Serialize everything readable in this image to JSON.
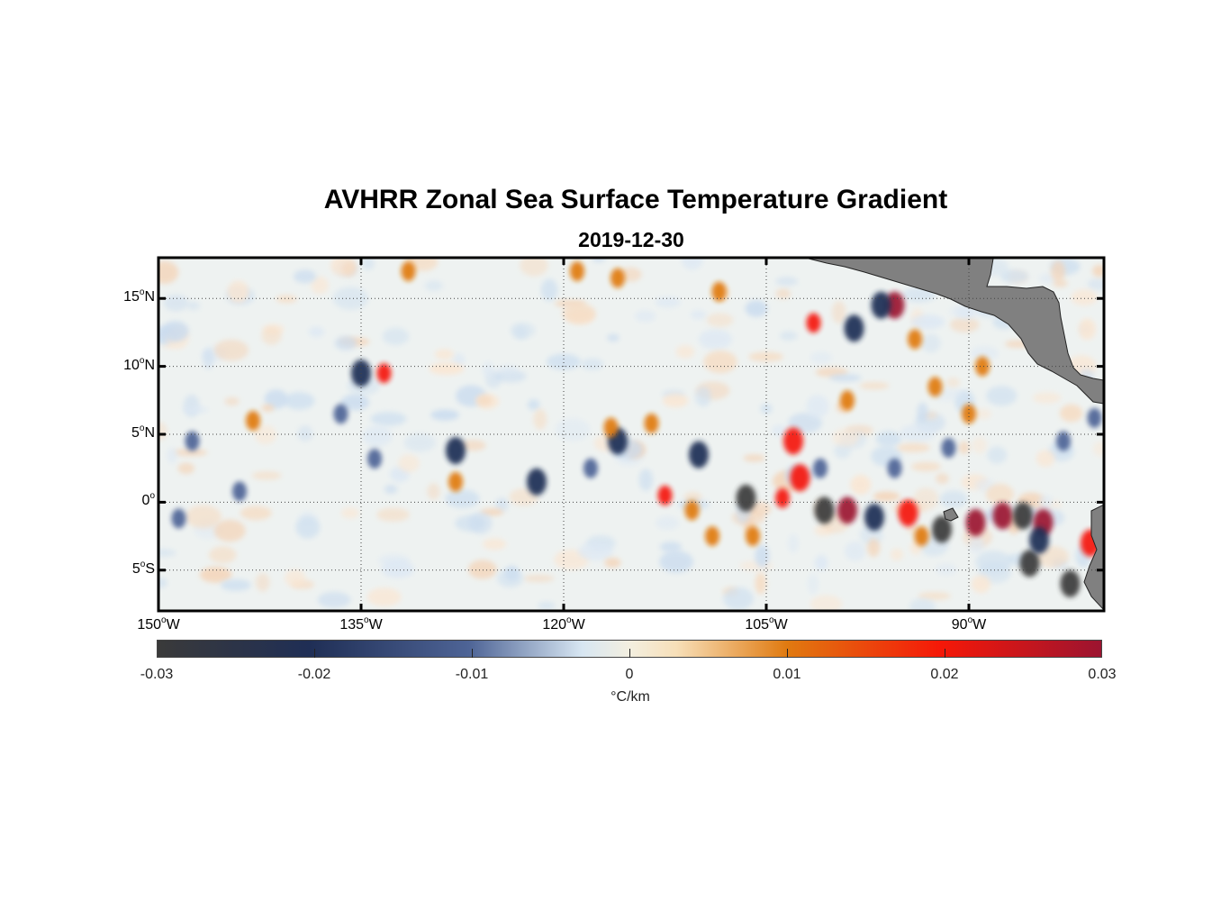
{
  "title": "AVHRR Zonal Sea Surface Temperature Gradient",
  "subtitle": "2019-12-30",
  "chart_data": {
    "type": "heatmap",
    "xlim": [
      -150,
      -80
    ],
    "ylim": [
      -8,
      18
    ],
    "lat_ticks": [
      {
        "value": 15,
        "deg": "15",
        "hemi": "N"
      },
      {
        "value": 10,
        "deg": "10",
        "hemi": "N"
      },
      {
        "value": 5,
        "deg": "5",
        "hemi": "N"
      },
      {
        "value": 0,
        "deg": "0",
        "hemi": ""
      },
      {
        "value": -5,
        "deg": "5",
        "hemi": "S"
      }
    ],
    "lon_ticks": [
      {
        "value": -150,
        "deg": "150",
        "hemi": "W"
      },
      {
        "value": -135,
        "deg": "135",
        "hemi": "W"
      },
      {
        "value": -120,
        "deg": "120",
        "hemi": "W"
      },
      {
        "value": -105,
        "deg": "105",
        "hemi": "W"
      },
      {
        "value": -90,
        "deg": "90",
        "hemi": "W"
      }
    ],
    "grid": true,
    "land_color": "#808080",
    "colorbar": {
      "range": [
        -0.03,
        0.03
      ],
      "ticks": [
        -0.03,
        -0.02,
        -0.01,
        0,
        0.01,
        0.02,
        0.03
      ],
      "tick_labels": [
        "-0.03",
        "-0.02",
        "-0.01",
        "0",
        "0.01",
        "0.02",
        "0.03"
      ],
      "unit": "°C/km",
      "colors": [
        "#3a3a3a",
        "#1f2e55",
        "#4e6496",
        "#d7e6f2",
        "#f3efe0",
        "#f7dfb8",
        "#e07a10",
        "#f51808",
        "#9c1430"
      ]
    },
    "features": [
      {
        "lon": -106.5,
        "lat": 0.3,
        "value": -0.03
      },
      {
        "lon": -103,
        "lat": 4.5,
        "value": 0.02
      },
      {
        "lon": -102.5,
        "lat": 1.8,
        "value": 0.02
      },
      {
        "lon": -100.7,
        "lat": -0.6,
        "value": -0.03
      },
      {
        "lon": -99,
        "lat": -0.6,
        "value": 0.03
      },
      {
        "lon": -97,
        "lat": -1.1,
        "value": -0.02
      },
      {
        "lon": -94.5,
        "lat": -0.8,
        "value": 0.02
      },
      {
        "lon": -92,
        "lat": -2,
        "value": -0.03
      },
      {
        "lon": -89.5,
        "lat": -1.5,
        "value": 0.03
      },
      {
        "lon": -87.5,
        "lat": -1,
        "value": 0.03
      },
      {
        "lon": -86,
        "lat": -1,
        "value": -0.03
      },
      {
        "lon": -84.5,
        "lat": -1.5,
        "value": 0.03
      },
      {
        "lon": -85.5,
        "lat": -4.5,
        "value": -0.03
      },
      {
        "lon": -82.5,
        "lat": -6,
        "value": -0.03
      },
      {
        "lon": -95.5,
        "lat": 14.5,
        "value": 0.03
      },
      {
        "lon": -98.5,
        "lat": 12.8,
        "value": -0.02
      },
      {
        "lon": -101.5,
        "lat": 13.2,
        "value": 0.015
      },
      {
        "lon": -96.5,
        "lat": 14.5,
        "value": -0.02
      },
      {
        "lon": -84.8,
        "lat": -2.8,
        "value": -0.025
      },
      {
        "lon": -81,
        "lat": -3,
        "value": 0.02
      },
      {
        "lon": -110,
        "lat": 3.5,
        "value": -0.02
      },
      {
        "lon": -116,
        "lat": 4.5,
        "value": -0.02
      },
      {
        "lon": -118,
        "lat": 2.5,
        "value": -0.015
      },
      {
        "lon": -122,
        "lat": 1.5,
        "value": -0.02
      },
      {
        "lon": -128,
        "lat": 3.8,
        "value": -0.02
      },
      {
        "lon": -134,
        "lat": 3.2,
        "value": -0.015
      },
      {
        "lon": -135,
        "lat": 9.5,
        "value": -0.02
      },
      {
        "lon": -133.3,
        "lat": 9.5,
        "value": 0.015
      },
      {
        "lon": -136.5,
        "lat": 6.5,
        "value": -0.015
      },
      {
        "lon": -144,
        "lat": 0.8,
        "value": -0.015
      },
      {
        "lon": -148.5,
        "lat": -1.2,
        "value": -0.015
      },
      {
        "lon": -147.5,
        "lat": 4.5,
        "value": -0.012
      },
      {
        "lon": -116.5,
        "lat": 5.5,
        "value": 0.012
      },
      {
        "lon": -113.5,
        "lat": 5.8,
        "value": 0.012
      },
      {
        "lon": -112.5,
        "lat": 0.5,
        "value": 0.015
      },
      {
        "lon": -110.5,
        "lat": -0.6,
        "value": 0.012
      },
      {
        "lon": -109,
        "lat": -2.5,
        "value": 0.012
      },
      {
        "lon": -106,
        "lat": -2.5,
        "value": 0.012
      },
      {
        "lon": -131.5,
        "lat": 17,
        "value": 0.012
      },
      {
        "lon": -119,
        "lat": 17,
        "value": 0.012
      },
      {
        "lon": -116,
        "lat": 16.5,
        "value": 0.012
      },
      {
        "lon": -108.5,
        "lat": 15.5,
        "value": 0.012
      },
      {
        "lon": -93.5,
        "lat": -2.5,
        "value": 0.012
      },
      {
        "lon": -99,
        "lat": 7.5,
        "value": 0.01
      },
      {
        "lon": -90,
        "lat": 6.5,
        "value": 0.01
      },
      {
        "lon": -94,
        "lat": 12,
        "value": 0.01
      },
      {
        "lon": -92.5,
        "lat": 8.5,
        "value": 0.01
      },
      {
        "lon": -89,
        "lat": 10,
        "value": 0.01
      },
      {
        "lon": -143,
        "lat": 6,
        "value": 0.008
      },
      {
        "lon": -128,
        "lat": 1.5,
        "value": 0.008
      },
      {
        "lon": -103.8,
        "lat": 0.3,
        "value": 0.015
      },
      {
        "lon": -95.5,
        "lat": 2.5,
        "value": -0.015
      },
      {
        "lon": -91.5,
        "lat": 4,
        "value": -0.015
      },
      {
        "lon": -83,
        "lat": 4.5,
        "value": -0.012
      },
      {
        "lon": -80.7,
        "lat": 6.2,
        "value": -0.015
      },
      {
        "lon": -101,
        "lat": 2.5,
        "value": -0.012
      }
    ]
  }
}
